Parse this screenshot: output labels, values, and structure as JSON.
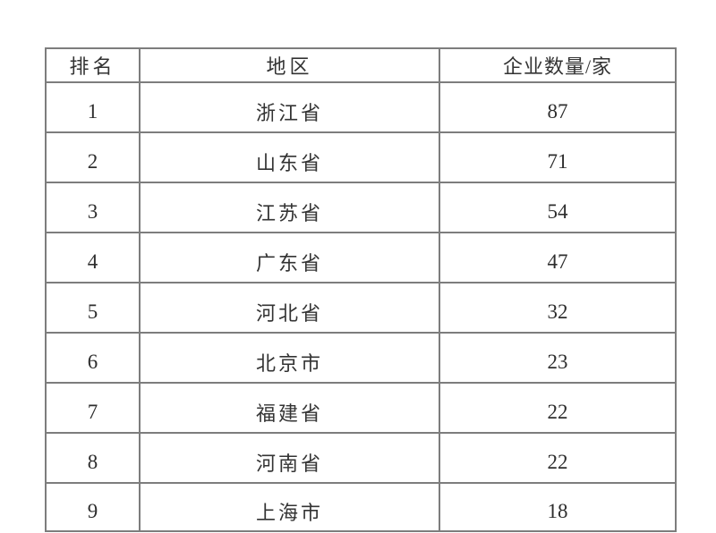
{
  "table": {
    "columns": {
      "rank": "排名",
      "region": "地区",
      "count": "企业数量/家"
    },
    "rows": [
      {
        "rank": "1",
        "region": "浙江省",
        "count": "87"
      },
      {
        "rank": "2",
        "region": "山东省",
        "count": "71"
      },
      {
        "rank": "3",
        "region": "江苏省",
        "count": "54"
      },
      {
        "rank": "4",
        "region": "广东省",
        "count": "47"
      },
      {
        "rank": "5",
        "region": "河北省",
        "count": "32"
      },
      {
        "rank": "6",
        "region": "北京市",
        "count": "23"
      },
      {
        "rank": "7",
        "region": "福建省",
        "count": "22"
      },
      {
        "rank": "8",
        "region": "河南省",
        "count": "22"
      },
      {
        "rank": "9",
        "region": "上海市",
        "count": "18"
      }
    ]
  },
  "chart_data": {
    "type": "table",
    "title": "",
    "categories": [
      "浙江省",
      "山东省",
      "江苏省",
      "广东省",
      "河北省",
      "北京市",
      "福建省",
      "河南省",
      "上海市"
    ],
    "values": [
      87,
      71,
      54,
      47,
      32,
      23,
      22,
      22,
      18
    ],
    "columns": [
      "排名",
      "地区",
      "企业数量/家"
    ]
  },
  "colors": {
    "border": "#7d7d7d",
    "text": "#333333",
    "background": "#ffffff"
  }
}
